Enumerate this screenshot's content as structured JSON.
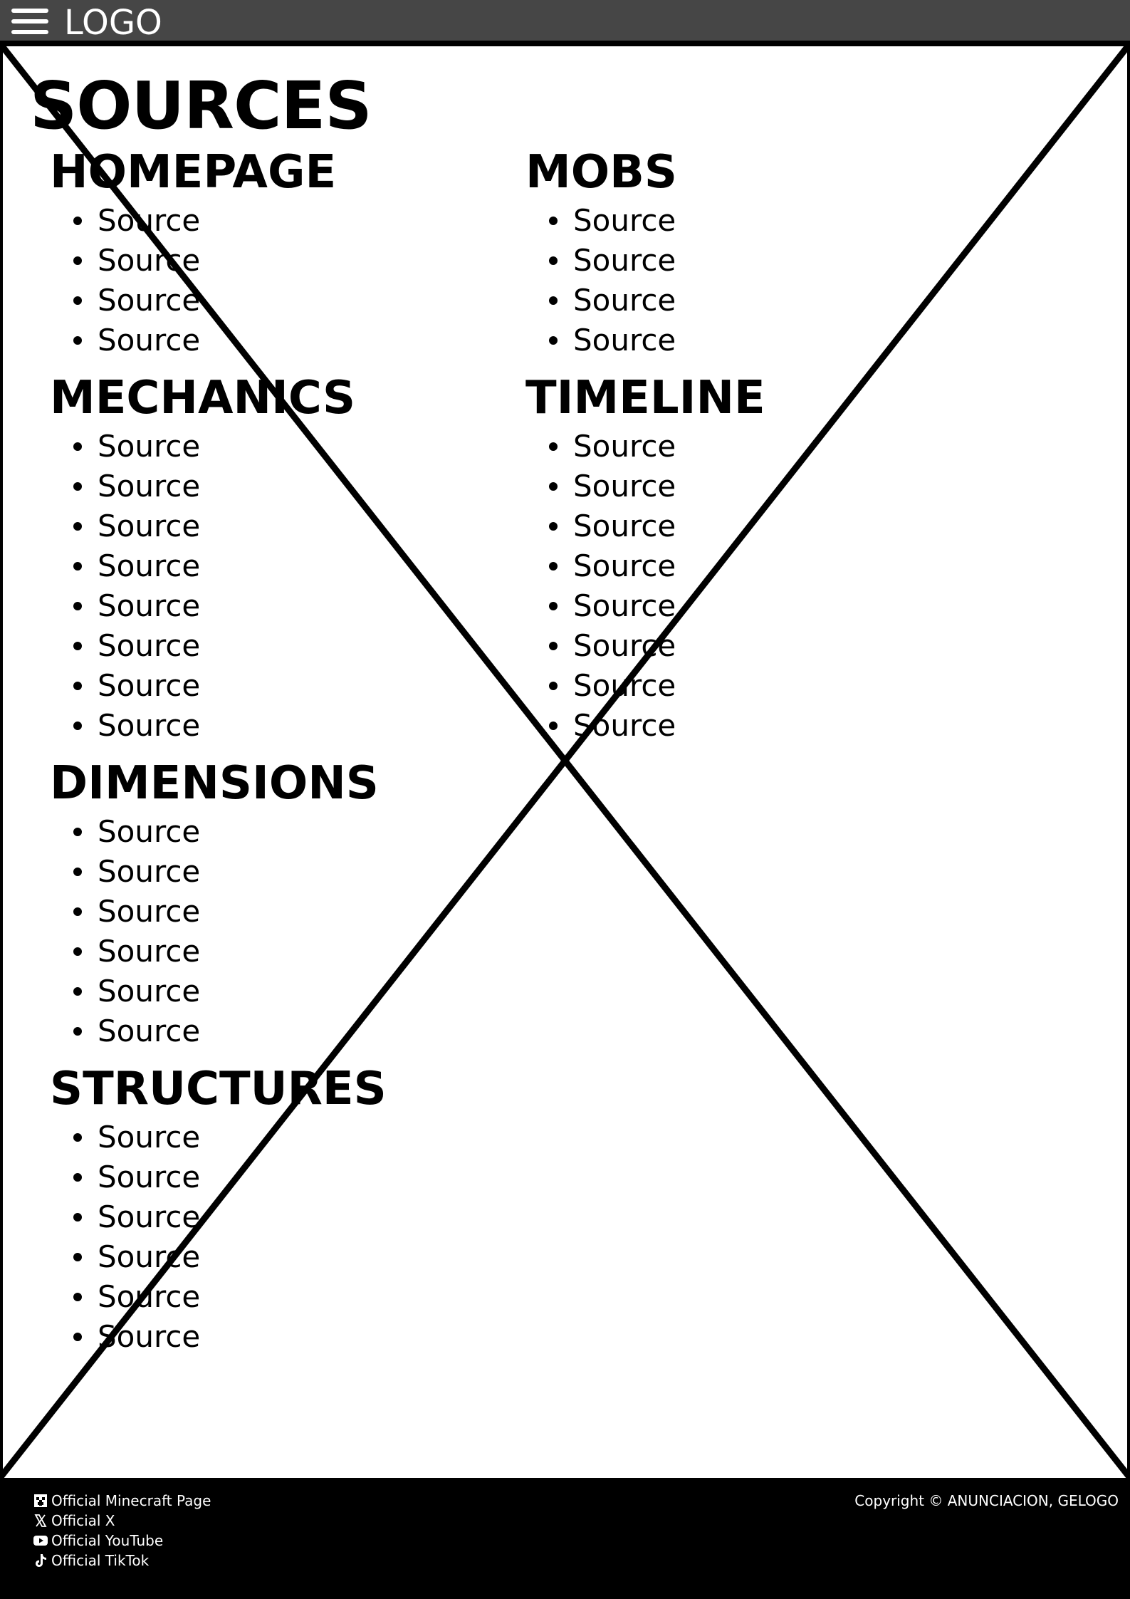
{
  "header": {
    "logo": "LOGO",
    "menu_icon": "hamburger-menu-icon"
  },
  "page": {
    "title": "SOURCES"
  },
  "sections": {
    "homepage": {
      "title": "HOMEPAGE",
      "items": [
        "Source",
        "Source",
        "Source",
        "Source"
      ]
    },
    "mobs": {
      "title": "MOBS",
      "items": [
        "Source",
        "Source",
        "Source",
        "Source"
      ]
    },
    "mechanics": {
      "title": "MECHANICS",
      "items": [
        "Source",
        "Source",
        "Source",
        "Source",
        "Source",
        "Source",
        "Source",
        "Source"
      ]
    },
    "timeline": {
      "title": "TIMELINE",
      "items": [
        "Source",
        "Source",
        "Source",
        "Source",
        "Source",
        "Source",
        "Source",
        "Source"
      ]
    },
    "dimensions": {
      "title": "DIMENSIONS",
      "items": [
        "Source",
        "Source",
        "Source",
        "Source",
        "Source",
        "Source"
      ]
    },
    "structures": {
      "title": "STRUCTURES",
      "items": [
        "Source",
        "Source",
        "Source",
        "Source",
        "Source",
        "Source"
      ]
    }
  },
  "footer": {
    "links": [
      {
        "label": "Official Minecraft Page",
        "icon": "minecraft-icon"
      },
      {
        "label": "Official X",
        "icon": "x-icon"
      },
      {
        "label": "Official YouTube",
        "icon": "youtube-icon"
      },
      {
        "label": "Official TikTok",
        "icon": "tiktok-icon"
      }
    ],
    "copyright": "Copyright © ANUNCIACION, GELOGO"
  },
  "colors": {
    "header_bg": "#464646",
    "footer_bg": "#000000",
    "page_bg": "#ffffff",
    "text": "#000000"
  }
}
